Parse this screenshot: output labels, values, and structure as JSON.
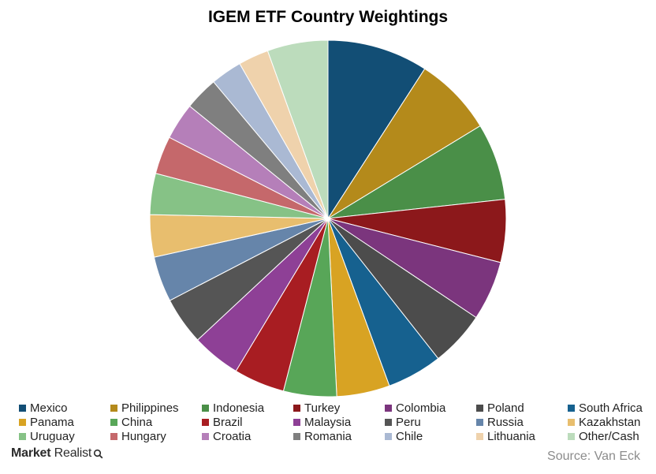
{
  "brand": {
    "name_bold": "Market",
    "name_rest": "Realist"
  },
  "source": "Source: Van Eck",
  "chart_data": {
    "type": "pie",
    "title": "IGEM  ETF Country  Weightings",
    "legend_position": "bottom",
    "slices": [
      {
        "label": "Mexico",
        "value": 9.3,
        "color": "#124e75"
      },
      {
        "label": "Philippines",
        "value": 7.3,
        "color": "#b48a1b"
      },
      {
        "label": "Indonesia",
        "value": 7.1,
        "color": "#4a8f48"
      },
      {
        "label": "Turkey",
        "value": 5.8,
        "color": "#8c181b"
      },
      {
        "label": "Colombia",
        "value": 5.5,
        "color": "#7b357d"
      },
      {
        "label": "Poland",
        "value": 5.1,
        "color": "#4c4c4c"
      },
      {
        "label": "South Africa",
        "value": 5.1,
        "color": "#16618f"
      },
      {
        "label": "Panama",
        "value": 4.9,
        "color": "#d8a323"
      },
      {
        "label": "China",
        "value": 4.9,
        "color": "#58a658"
      },
      {
        "label": "Brazil",
        "value": 4.7,
        "color": "#a81d22"
      },
      {
        "label": "Malaysia",
        "value": 4.5,
        "color": "#8e4096"
      },
      {
        "label": "Peru",
        "value": 4.4,
        "color": "#555555"
      },
      {
        "label": "Russia",
        "value": 4.2,
        "color": "#6685aa"
      },
      {
        "label": "Kazakhstan",
        "value": 3.9,
        "color": "#e8be6e"
      },
      {
        "label": "Uruguay",
        "value": 3.8,
        "color": "#86c286"
      },
      {
        "label": "Hungary",
        "value": 3.5,
        "color": "#c5686b"
      },
      {
        "label": "Croatia",
        "value": 3.4,
        "color": "#b57fb9"
      },
      {
        "label": "Romania",
        "value": 3.1,
        "color": "#7f7f7f"
      },
      {
        "label": "Chile",
        "value": 2.9,
        "color": "#aab9d3"
      },
      {
        "label": "Lithuania",
        "value": 2.8,
        "color": "#efd2ac"
      },
      {
        "label": "Other/Cash",
        "value": 5.6,
        "color": "#bcdcbc"
      }
    ]
  }
}
